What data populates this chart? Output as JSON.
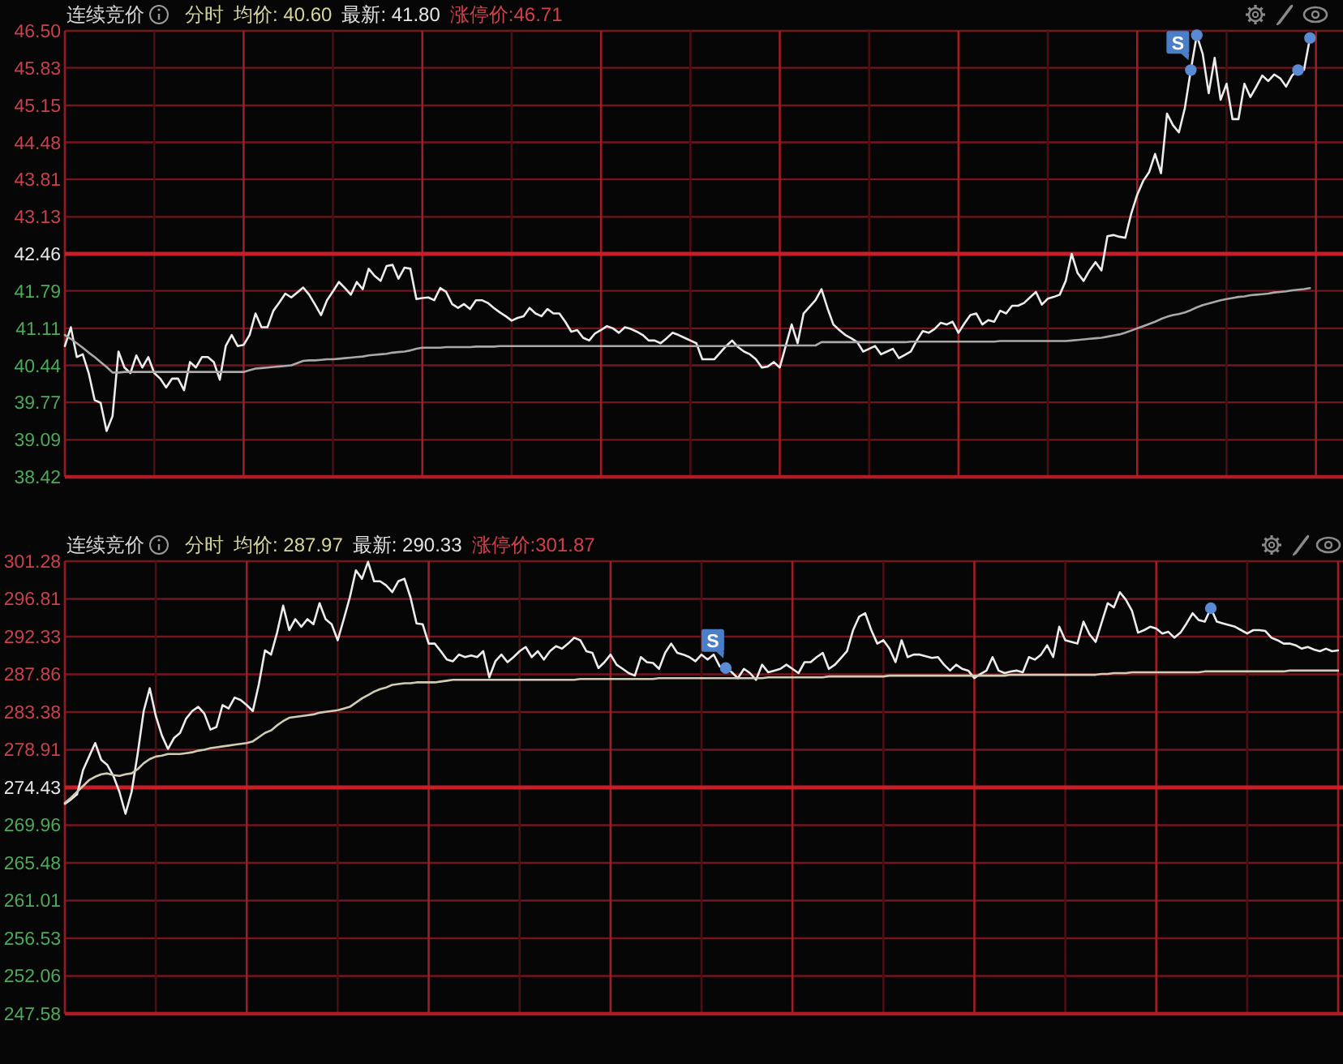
{
  "chart_data": [
    {
      "type": "line",
      "title": "连续竞价",
      "annotations": [
        "分时",
        "均价: 40.60",
        "最新: 41.80",
        "涨停价:46.71"
      ],
      "categories": [
        null,
        null,
        null,
        null,
        null,
        null,
        null,
        null,
        null,
        null,
        null,
        null,
        null,
        null,
        null,
        null,
        null,
        null,
        null,
        null,
        null,
        null,
        null,
        null,
        null,
        null,
        null,
        null,
        null,
        null,
        null,
        null,
        null,
        null,
        null,
        null,
        null,
        null,
        null,
        null,
        null,
        null,
        null,
        null,
        null,
        null,
        null,
        null,
        null,
        null,
        null,
        null,
        null,
        null,
        null,
        null,
        null,
        null,
        null,
        null,
        null,
        null,
        null,
        null,
        null,
        null,
        null,
        null,
        null,
        null,
        null,
        null,
        null,
        null,
        null,
        null,
        null,
        null,
        null,
        null,
        null,
        null,
        null,
        null,
        null,
        null,
        null,
        null,
        null,
        null,
        null,
        null,
        null,
        null,
        null,
        null,
        null,
        null,
        null,
        null,
        null,
        null,
        null,
        null,
        null,
        null,
        null,
        null,
        null,
        null,
        null,
        null,
        null,
        null,
        null,
        null,
        null,
        null,
        null,
        null,
        null,
        null,
        null,
        null,
        null,
        null,
        null,
        null,
        null,
        null,
        null,
        null,
        null,
        null,
        null,
        null,
        null,
        null,
        null,
        null,
        null,
        null,
        null,
        null,
        null,
        null,
        null,
        null,
        null,
        null,
        null,
        null,
        null,
        null,
        null,
        null,
        null,
        null,
        null,
        null,
        null,
        null,
        null,
        null,
        null,
        null,
        null,
        null,
        null,
        null,
        null,
        null,
        null,
        null,
        null,
        null,
        null,
        null,
        null,
        null,
        null,
        null,
        null,
        null,
        null,
        null,
        null,
        null,
        null,
        null,
        null,
        null,
        null,
        null,
        null,
        null,
        null,
        null,
        null,
        null,
        null,
        null,
        null,
        null,
        null,
        null,
        null,
        null,
        null,
        null,
        null,
        null,
        null,
        null,
        null
      ],
      "ylim": [
        38.42,
        46.5
      ],
      "yticks": [
        {
          "value": 46.5,
          "label": "46.50"
        },
        45.83,
        45.15,
        44.48,
        43.81,
        43.13,
        42.46,
        41.79,
        41.11,
        40.44,
        39.77,
        39.09,
        38.42
      ],
      "tick_labels": "y",
      "grid": true,
      "ref_lines": [
        {
          "axis": "y",
          "value": 42.46,
          "color": "#c81e28"
        }
      ],
      "series": [
        {
          "color": "#ececec",
          "values": [
            40.79,
            41.13,
            40.59,
            40.64,
            40.3,
            39.81,
            39.76,
            39.25,
            39.52,
            40.69,
            40.4,
            40.3,
            40.62,
            40.4,
            40.59,
            40.3,
            40.2,
            40.04,
            40.2,
            40.2,
            39.99,
            40.5,
            40.4,
            40.59,
            40.59,
            40.5,
            40.18,
            40.79,
            40.99,
            40.79,
            40.81,
            40.99,
            41.38,
            41.13,
            41.13,
            41.43,
            41.58,
            41.74,
            41.67,
            41.76,
            41.85,
            41.72,
            41.54,
            41.35,
            41.62,
            41.78,
            41.95,
            41.84,
            41.72,
            41.95,
            41.82,
            42.19,
            42.06,
            41.97,
            42.24,
            42.26,
            42.01,
            42.21,
            42.19,
            41.64,
            41.66,
            41.67,
            41.62,
            41.84,
            41.77,
            41.55,
            41.48,
            41.55,
            41.46,
            41.62,
            41.62,
            41.57,
            41.48,
            41.4,
            41.33,
            41.25,
            41.3,
            41.33,
            41.48,
            41.38,
            41.33,
            41.46,
            41.38,
            41.38,
            41.23,
            41.05,
            41.08,
            40.94,
            40.89,
            41.02,
            41.08,
            41.15,
            41.11,
            41.03,
            41.13,
            41.1,
            41.05,
            40.99,
            40.89,
            40.89,
            40.84,
            40.93,
            41.03,
            40.99,
            40.94,
            40.89,
            40.84,
            40.55,
            40.55,
            40.55,
            40.67,
            40.79,
            40.89,
            40.77,
            40.69,
            40.64,
            40.55,
            40.4,
            40.42,
            40.5,
            40.4,
            40.79,
            41.18,
            40.84,
            41.38,
            41.5,
            41.62,
            41.82,
            41.48,
            41.18,
            41.08,
            40.99,
            40.93,
            40.86,
            40.69,
            40.74,
            40.79,
            40.64,
            40.69,
            40.74,
            40.57,
            40.63,
            40.69,
            40.89,
            41.06,
            41.03,
            41.1,
            41.21,
            41.18,
            41.23,
            41.03,
            41.2,
            41.35,
            41.38,
            41.18,
            41.26,
            41.23,
            41.43,
            41.38,
            41.52,
            41.52,
            41.57,
            41.67,
            41.77,
            41.54,
            41.65,
            41.68,
            41.72,
            41.97,
            42.46,
            42.11,
            41.97,
            42.16,
            42.31,
            42.16,
            42.78,
            42.8,
            42.77,
            42.75,
            43.19,
            43.53,
            43.78,
            43.94,
            44.27,
            43.92,
            45.0,
            44.79,
            44.66,
            45.1,
            45.79,
            46.42,
            46.08,
            45.37,
            46.01,
            45.25,
            45.54,
            44.9,
            44.9,
            45.54,
            45.3,
            45.49,
            45.69,
            45.59,
            45.71,
            45.64,
            45.49,
            45.69,
            45.79,
            45.79,
            46.37,
            null,
            null,
            null,
            null,
            null
          ]
        },
        {
          "color": "#a9a9a9",
          "values": [
            40.99,
            40.92,
            40.84,
            40.76,
            40.67,
            40.59,
            40.5,
            40.41,
            40.31,
            40.31,
            40.32,
            40.32,
            40.32,
            40.32,
            40.32,
            40.32,
            40.32,
            40.32,
            40.32,
            40.32,
            40.32,
            40.32,
            40.32,
            40.32,
            40.32,
            40.32,
            40.32,
            40.32,
            40.32,
            40.32,
            40.32,
            40.35,
            40.38,
            40.39,
            40.4,
            40.41,
            40.42,
            40.43,
            40.44,
            40.48,
            40.52,
            40.53,
            40.53,
            40.54,
            40.55,
            40.55,
            40.56,
            40.57,
            40.58,
            40.59,
            40.6,
            40.62,
            40.63,
            40.64,
            40.65,
            40.67,
            40.68,
            40.69,
            40.71,
            40.74,
            40.76,
            40.76,
            40.76,
            40.76,
            40.77,
            40.77,
            40.77,
            40.77,
            40.77,
            40.78,
            40.78,
            40.78,
            40.78,
            40.79,
            40.79,
            40.79,
            40.79,
            40.79,
            40.79,
            40.79,
            40.79,
            40.79,
            40.79,
            40.79,
            40.79,
            40.79,
            40.79,
            40.79,
            40.79,
            40.79,
            40.79,
            40.79,
            40.79,
            40.79,
            40.79,
            40.79,
            40.79,
            40.79,
            40.79,
            40.79,
            40.79,
            40.79,
            40.79,
            40.79,
            40.79,
            40.79,
            40.79,
            40.79,
            40.79,
            40.79,
            40.79,
            40.79,
            40.79,
            40.8,
            40.8,
            40.8,
            40.8,
            40.8,
            40.8,
            40.8,
            40.8,
            40.8,
            40.8,
            40.8,
            40.8,
            40.8,
            40.8,
            40.86,
            40.86,
            40.86,
            40.86,
            40.86,
            40.86,
            40.86,
            40.86,
            40.86,
            40.86,
            40.86,
            40.86,
            40.86,
            40.86,
            40.86,
            40.87,
            40.87,
            40.87,
            40.87,
            40.87,
            40.87,
            40.87,
            40.87,
            40.87,
            40.87,
            40.87,
            40.87,
            40.87,
            40.87,
            40.87,
            40.88,
            40.88,
            40.88,
            40.88,
            40.88,
            40.88,
            40.88,
            40.88,
            40.88,
            40.88,
            40.88,
            40.88,
            40.89,
            40.9,
            40.91,
            40.92,
            40.93,
            40.94,
            40.96,
            40.98,
            41.0,
            41.03,
            41.07,
            41.11,
            41.15,
            41.19,
            41.23,
            41.28,
            41.32,
            41.35,
            41.37,
            41.4,
            41.44,
            41.49,
            41.53,
            41.56,
            41.59,
            41.62,
            41.64,
            41.66,
            41.68,
            41.69,
            41.71,
            41.72,
            41.73,
            41.74,
            41.76,
            41.77,
            41.78,
            41.8,
            41.81,
            41.82,
            41.84,
            null,
            null,
            null,
            null,
            null
          ]
        },
        {
          "type": "scatter",
          "marker": "circle",
          "color": "#5a8ad4",
          "values": [
            null,
            null,
            null,
            null,
            null,
            null,
            null,
            null,
            null,
            null,
            null,
            null,
            null,
            null,
            null,
            null,
            null,
            null,
            null,
            null,
            null,
            null,
            null,
            null,
            null,
            null,
            null,
            null,
            null,
            null,
            null,
            null,
            null,
            null,
            null,
            null,
            null,
            null,
            null,
            null,
            null,
            null,
            null,
            null,
            null,
            null,
            null,
            null,
            null,
            null,
            null,
            null,
            null,
            null,
            null,
            null,
            null,
            null,
            null,
            null,
            null,
            null,
            null,
            null,
            null,
            null,
            null,
            null,
            null,
            null,
            null,
            null,
            null,
            null,
            null,
            null,
            null,
            null,
            null,
            null,
            null,
            null,
            null,
            null,
            null,
            null,
            null,
            null,
            null,
            null,
            null,
            null,
            null,
            null,
            null,
            null,
            null,
            null,
            null,
            null,
            null,
            null,
            null,
            null,
            null,
            null,
            null,
            null,
            null,
            null,
            null,
            null,
            null,
            null,
            null,
            null,
            null,
            null,
            null,
            null,
            null,
            null,
            null,
            null,
            null,
            null,
            null,
            null,
            null,
            null,
            null,
            null,
            null,
            null,
            null,
            null,
            null,
            null,
            null,
            null,
            null,
            null,
            null,
            null,
            null,
            null,
            null,
            null,
            null,
            null,
            null,
            null,
            null,
            null,
            null,
            null,
            null,
            null,
            null,
            null,
            null,
            null,
            null,
            null,
            null,
            null,
            null,
            null,
            null,
            null,
            null,
            null,
            null,
            null,
            null,
            null,
            null,
            null,
            null,
            null,
            null,
            null,
            null,
            null,
            null,
            null,
            null,
            null,
            null,
            45.79,
            46.42,
            null,
            null,
            null,
            null,
            null,
            null,
            null,
            null,
            null,
            null,
            null,
            null,
            null,
            null,
            null,
            null,
            45.79,
            null,
            46.37,
            null,
            null,
            null,
            null,
            null
          ],
          "value_labels": [
            null,
            null,
            null,
            null,
            null,
            null,
            null,
            null,
            null,
            null,
            null,
            null,
            null,
            null,
            null,
            null,
            null,
            null,
            null,
            null,
            null,
            null,
            null,
            null,
            null,
            null,
            null,
            null,
            null,
            null,
            null,
            null,
            null,
            null,
            null,
            null,
            null,
            null,
            null,
            null,
            null,
            null,
            null,
            null,
            null,
            null,
            null,
            null,
            null,
            null,
            null,
            null,
            null,
            null,
            null,
            null,
            null,
            null,
            null,
            null,
            null,
            null,
            null,
            null,
            null,
            null,
            null,
            null,
            null,
            null,
            null,
            null,
            null,
            null,
            null,
            null,
            null,
            null,
            null,
            null,
            null,
            null,
            null,
            null,
            null,
            null,
            null,
            null,
            null,
            null,
            null,
            null,
            null,
            null,
            null,
            null,
            null,
            null,
            null,
            null,
            null,
            null,
            null,
            null,
            null,
            null,
            null,
            null,
            null,
            null,
            null,
            null,
            null,
            null,
            null,
            null,
            null,
            null,
            null,
            null,
            null,
            null,
            null,
            null,
            null,
            null,
            null,
            null,
            null,
            null,
            null,
            null,
            null,
            null,
            null,
            null,
            null,
            null,
            null,
            null,
            null,
            null,
            null,
            null,
            null,
            null,
            null,
            null,
            null,
            null,
            null,
            null,
            null,
            null,
            null,
            null,
            null,
            null,
            null,
            null,
            null,
            null,
            null,
            null,
            null,
            null,
            null,
            null,
            null,
            null,
            null,
            null,
            null,
            null,
            null,
            null,
            null,
            null,
            null,
            null,
            null,
            null,
            null,
            null,
            null,
            null,
            null,
            null,
            null,
            "S",
            null,
            null,
            null,
            null,
            null,
            null,
            null,
            null,
            null,
            null,
            null,
            null,
            null,
            null,
            null,
            null,
            null,
            null,
            null,
            null,
            null,
            null,
            null,
            null,
            null
          ]
        }
      ]
    },
    {
      "type": "line",
      "title": "连续竞价",
      "annotations": [
        "分时",
        "均价: 287.97",
        "最新: 290.33",
        "涨停价:301.87"
      ],
      "categories": [
        null,
        null,
        null,
        null,
        null,
        null,
        null,
        null,
        null,
        null,
        null,
        null,
        null,
        null,
        null,
        null,
        null,
        null,
        null,
        null,
        null,
        null,
        null,
        null,
        null,
        null,
        null,
        null,
        null,
        null,
        null,
        null,
        null,
        null,
        null,
        null,
        null,
        null,
        null,
        null,
        null,
        null,
        null,
        null,
        null,
        null,
        null,
        null,
        null,
        null,
        null,
        null,
        null,
        null,
        null,
        null,
        null,
        null,
        null,
        null,
        null,
        null,
        null,
        null,
        null,
        null,
        null,
        null,
        null,
        null,
        null,
        null,
        null,
        null,
        null,
        null,
        null,
        null,
        null,
        null,
        null,
        null,
        null,
        null,
        null,
        null,
        null,
        null,
        null,
        null,
        null,
        null,
        null,
        null,
        null,
        null,
        null,
        null,
        null,
        null,
        null,
        null,
        null,
        null,
        null,
        null,
        null,
        null,
        null,
        null,
        null,
        null,
        null,
        null,
        null,
        null,
        null,
        null,
        null,
        null,
        null,
        null,
        null,
        null,
        null,
        null,
        null,
        null,
        null,
        null,
        null,
        null,
        null,
        null,
        null,
        null,
        null,
        null,
        null,
        null,
        null,
        null,
        null,
        null,
        null,
        null,
        null,
        null,
        null,
        null,
        null,
        null,
        null,
        null,
        null,
        null,
        null,
        null,
        null,
        null,
        null,
        null,
        null,
        null,
        null,
        null,
        null,
        null,
        null,
        null,
        null,
        null,
        null,
        null,
        null,
        null,
        null,
        null,
        null,
        null,
        null,
        null,
        null,
        null,
        null,
        null,
        null,
        null,
        null,
        null,
        null,
        null,
        null,
        null,
        null,
        null,
        null,
        null,
        null,
        null,
        null,
        null,
        null,
        null,
        null,
        null,
        null,
        null,
        null,
        null,
        null
      ],
      "ylim": [
        247.58,
        301.28
      ],
      "yticks": [
        301.28,
        296.81,
        292.33,
        287.86,
        283.38,
        278.91,
        274.43,
        269.96,
        265.48,
        261.01,
        256.53,
        252.06,
        247.58
      ],
      "tick_labels": "y",
      "grid": true,
      "ref_lines": [
        {
          "axis": "y",
          "value": 274.43,
          "color": "#c81e28"
        }
      ],
      "series": [
        {
          "color": "#ececec",
          "values": [
            272.5,
            273.0,
            273.6,
            276.5,
            278.1,
            279.7,
            277.7,
            277.1,
            275.8,
            273.9,
            271.3,
            273.9,
            278.4,
            283.5,
            286.2,
            282.9,
            280.6,
            279.0,
            280.3,
            280.9,
            282.6,
            283.5,
            284.0,
            283.2,
            281.3,
            281.6,
            284.2,
            283.8,
            285.1,
            284.8,
            284.2,
            283.5,
            286.7,
            290.7,
            290.2,
            292.8,
            296.0,
            293.1,
            294.4,
            293.5,
            294.4,
            293.8,
            296.3,
            294.4,
            293.8,
            291.9,
            294.4,
            297.0,
            300.2,
            299.2,
            301.2,
            298.9,
            298.9,
            298.4,
            297.6,
            298.9,
            299.2,
            297.0,
            293.9,
            293.8,
            291.5,
            291.5,
            290.6,
            289.6,
            289.4,
            290.2,
            289.9,
            290.1,
            289.9,
            290.6,
            287.5,
            289.4,
            290.2,
            289.3,
            289.9,
            290.6,
            291.1,
            289.9,
            290.6,
            289.6,
            290.6,
            291.2,
            290.9,
            291.5,
            292.2,
            291.9,
            290.6,
            290.4,
            288.6,
            289.3,
            290.2,
            289.0,
            288.5,
            288.0,
            287.7,
            289.9,
            289.3,
            289.2,
            288.5,
            290.4,
            291.5,
            290.4,
            290.2,
            289.9,
            289.4,
            290.2,
            289.6,
            290.2,
            288.8,
            288.6,
            288.1,
            287.4,
            288.5,
            288.0,
            287.2,
            289.0,
            288.1,
            288.3,
            288.5,
            289.0,
            288.5,
            288.0,
            289.3,
            289.3,
            289.9,
            290.4,
            288.5,
            289.0,
            289.8,
            290.6,
            293.1,
            294.7,
            295.1,
            293.1,
            291.5,
            291.9,
            290.9,
            289.3,
            291.9,
            289.9,
            290.2,
            290.2,
            290.0,
            289.8,
            289.9,
            289.0,
            288.3,
            289.0,
            288.5,
            288.3,
            287.4,
            287.9,
            288.3,
            289.9,
            288.3,
            288.0,
            288.2,
            288.3,
            288.1,
            289.9,
            289.6,
            290.2,
            291.3,
            289.9,
            293.5,
            291.9,
            291.7,
            291.5,
            294.1,
            292.6,
            291.7,
            294.0,
            296.3,
            295.8,
            297.6,
            296.7,
            295.4,
            292.8,
            293.1,
            293.5,
            293.3,
            292.7,
            292.9,
            292.2,
            292.8,
            293.9,
            295.1,
            294.3,
            294.1,
            295.7,
            294.1,
            293.9,
            293.7,
            293.5,
            293.1,
            292.7,
            293.1,
            293.1,
            293.0,
            292.2,
            291.9,
            291.5,
            291.5,
            291.3,
            290.9,
            291.1,
            290.8,
            290.6,
            290.9,
            290.6,
            290.7
          ]
        },
        {
          "color": "#d2ccb4",
          "values": [
            272.6,
            273.2,
            273.9,
            274.6,
            275.3,
            275.7,
            276.0,
            276.1,
            275.9,
            275.8,
            276.0,
            276.1,
            276.6,
            277.3,
            277.8,
            278.1,
            278.2,
            278.4,
            278.4,
            278.4,
            278.5,
            278.6,
            278.8,
            278.9,
            279.1,
            279.2,
            279.3,
            279.4,
            279.5,
            279.6,
            279.7,
            279.9,
            280.4,
            280.9,
            281.2,
            281.8,
            282.3,
            282.7,
            282.8,
            282.9,
            283.0,
            283.1,
            283.3,
            283.4,
            283.5,
            283.6,
            283.8,
            284.0,
            284.5,
            285.0,
            285.4,
            285.8,
            286.1,
            286.3,
            286.6,
            286.7,
            286.8,
            286.8,
            286.9,
            286.9,
            286.9,
            286.9,
            287.0,
            287.1,
            287.2,
            287.2,
            287.2,
            287.2,
            287.2,
            287.2,
            287.2,
            287.2,
            287.2,
            287.2,
            287.2,
            287.2,
            287.2,
            287.2,
            287.2,
            287.2,
            287.2,
            287.2,
            287.2,
            287.2,
            287.2,
            287.3,
            287.3,
            287.3,
            287.3,
            287.3,
            287.3,
            287.3,
            287.3,
            287.3,
            287.3,
            287.3,
            287.3,
            287.3,
            287.4,
            287.4,
            287.4,
            287.4,
            287.4,
            287.4,
            287.4,
            287.4,
            287.4,
            287.4,
            287.4,
            287.4,
            287.4,
            287.4,
            287.4,
            287.4,
            287.4,
            287.4,
            287.5,
            287.5,
            287.5,
            287.5,
            287.5,
            287.5,
            287.5,
            287.5,
            287.5,
            287.5,
            287.6,
            287.6,
            287.6,
            287.6,
            287.6,
            287.6,
            287.6,
            287.6,
            287.6,
            287.6,
            287.7,
            287.7,
            287.7,
            287.7,
            287.7,
            287.7,
            287.7,
            287.7,
            287.7,
            287.7,
            287.7,
            287.7,
            287.7,
            287.7,
            287.7,
            287.7,
            287.7,
            287.7,
            287.7,
            287.7,
            287.8,
            287.8,
            287.8,
            287.8,
            287.8,
            287.8,
            287.8,
            287.8,
            287.8,
            287.8,
            287.8,
            287.8,
            287.8,
            287.8,
            287.8,
            287.9,
            287.9,
            288.0,
            288.0,
            288.0,
            288.1,
            288.1,
            288.1,
            288.1,
            288.1,
            288.1,
            288.1,
            288.1,
            288.1,
            288.1,
            288.1,
            288.1,
            288.2,
            288.2,
            288.2,
            288.2,
            288.2,
            288.2,
            288.2,
            288.2,
            288.2,
            288.2,
            288.2,
            288.2,
            288.2,
            288.2,
            288.3,
            288.3,
            288.3,
            288.3,
            288.3,
            288.3,
            288.3,
            288.3,
            288.3
          ]
        },
        {
          "type": "scatter",
          "marker": "circle",
          "color": "#5a8ad4",
          "values": [
            null,
            null,
            null,
            null,
            null,
            null,
            null,
            null,
            null,
            null,
            null,
            null,
            null,
            null,
            null,
            null,
            null,
            null,
            null,
            null,
            null,
            null,
            null,
            null,
            null,
            null,
            null,
            null,
            null,
            null,
            null,
            null,
            null,
            null,
            null,
            null,
            null,
            null,
            null,
            null,
            null,
            null,
            null,
            null,
            null,
            null,
            null,
            null,
            null,
            null,
            null,
            null,
            null,
            null,
            null,
            null,
            null,
            null,
            null,
            null,
            null,
            null,
            null,
            null,
            null,
            null,
            null,
            null,
            null,
            null,
            null,
            null,
            null,
            null,
            null,
            null,
            null,
            null,
            null,
            null,
            null,
            null,
            null,
            null,
            null,
            null,
            null,
            null,
            null,
            null,
            null,
            null,
            null,
            null,
            null,
            null,
            null,
            null,
            null,
            null,
            null,
            null,
            null,
            null,
            null,
            null,
            null,
            null,
            null,
            288.6,
            null,
            null,
            null,
            null,
            null,
            null,
            null,
            null,
            null,
            null,
            null,
            null,
            null,
            null,
            null,
            null,
            null,
            null,
            null,
            null,
            null,
            null,
            null,
            null,
            null,
            null,
            null,
            null,
            null,
            null,
            null,
            null,
            null,
            null,
            null,
            null,
            null,
            null,
            null,
            null,
            null,
            null,
            null,
            null,
            null,
            null,
            null,
            null,
            null,
            null,
            null,
            null,
            null,
            null,
            null,
            null,
            null,
            null,
            null,
            null,
            null,
            null,
            null,
            null,
            null,
            null,
            null,
            null,
            null,
            null,
            null,
            null,
            null,
            null,
            null,
            null,
            null,
            null,
            null,
            295.7,
            null,
            null,
            null,
            null,
            null,
            null,
            null,
            null,
            null,
            null,
            null,
            null,
            null,
            null,
            null,
            null,
            null,
            null,
            null,
            null,
            null
          ],
          "value_labels": [
            null,
            null,
            null,
            null,
            null,
            null,
            null,
            null,
            null,
            null,
            null,
            null,
            null,
            null,
            null,
            null,
            null,
            null,
            null,
            null,
            null,
            null,
            null,
            null,
            null,
            null,
            null,
            null,
            null,
            null,
            null,
            null,
            null,
            null,
            null,
            null,
            null,
            null,
            null,
            null,
            null,
            null,
            null,
            null,
            null,
            null,
            null,
            null,
            null,
            null,
            null,
            null,
            null,
            null,
            null,
            null,
            null,
            null,
            null,
            null,
            null,
            null,
            null,
            null,
            null,
            null,
            null,
            null,
            null,
            null,
            null,
            null,
            null,
            null,
            null,
            null,
            null,
            null,
            null,
            null,
            null,
            null,
            null,
            null,
            null,
            null,
            null,
            null,
            null,
            null,
            null,
            null,
            null,
            null,
            null,
            null,
            null,
            null,
            null,
            null,
            null,
            null,
            null,
            null,
            null,
            null,
            null,
            null,
            null,
            "S",
            null,
            null,
            null,
            null,
            null,
            null,
            null,
            null,
            null,
            null,
            null,
            null,
            null,
            null,
            null,
            null,
            null,
            null,
            null,
            null,
            null,
            null,
            null,
            null,
            null,
            null,
            null,
            null,
            null,
            null,
            null,
            null,
            null,
            null,
            null,
            null,
            null,
            null,
            null,
            null,
            null,
            null,
            null,
            null,
            null,
            null,
            null,
            null,
            null,
            null,
            null,
            null,
            null,
            null,
            null,
            null,
            null,
            null,
            null,
            null,
            null,
            null,
            null,
            null,
            null,
            null,
            null,
            null,
            null,
            null,
            null,
            null,
            null,
            null,
            null,
            null,
            null,
            null,
            null,
            null,
            null,
            null,
            null,
            null,
            null,
            null,
            null,
            null,
            null,
            null,
            null,
            null,
            null,
            null,
            null,
            null,
            null,
            null,
            null,
            null,
            null
          ]
        }
      ]
    }
  ]
}
